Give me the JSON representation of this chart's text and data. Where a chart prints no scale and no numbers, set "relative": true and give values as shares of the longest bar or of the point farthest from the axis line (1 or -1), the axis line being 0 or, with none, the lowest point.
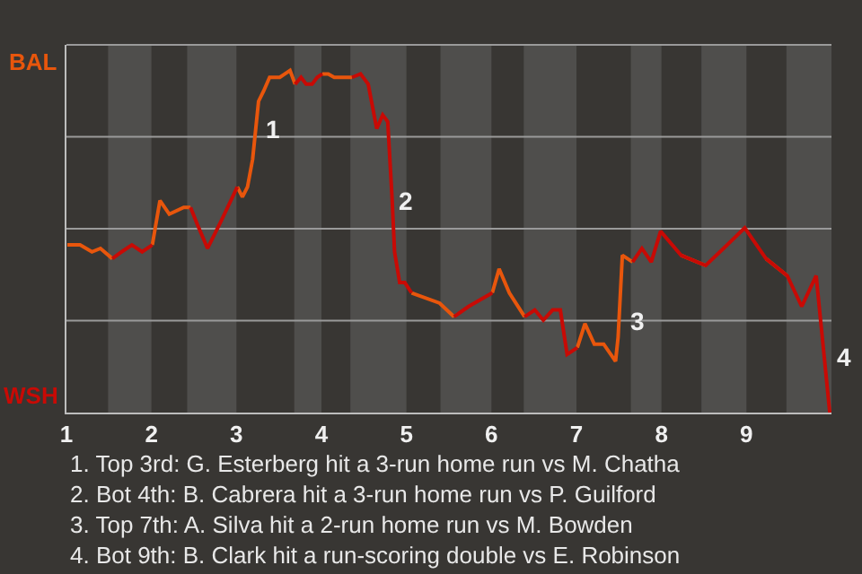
{
  "chart_data": {
    "type": "line",
    "relative": true,
    "x": [
      1.01,
      1.16,
      1.3,
      1.4,
      1.54,
      1.65,
      1.77,
      1.89,
      2.01,
      2.1,
      2.21,
      2.38,
      2.46,
      2.54,
      2.66,
      2.82,
      3.01,
      3.07,
      3.13,
      3.19,
      3.26,
      3.32,
      3.39,
      3.51,
      3.57,
      3.63,
      3.69,
      3.76,
      3.82,
      3.89,
      3.95,
      4.01,
      4.08,
      4.15,
      4.28,
      4.36,
      4.46,
      4.55,
      4.65,
      4.72,
      4.78,
      4.83,
      4.86,
      4.92,
      4.98,
      5.06,
      5.39,
      5.56,
      5.73,
      6.01,
      6.09,
      6.21,
      6.39,
      6.51,
      6.61,
      6.72,
      6.81,
      6.89,
      7.01,
      7.1,
      7.21,
      7.32,
      7.46,
      7.49,
      7.54,
      7.66,
      7.77,
      7.88,
      7.99,
      8.23,
      8.52,
      8.73,
      8.98,
      9.23,
      9.48,
      9.65,
      9.82,
      9.88,
      9.98
    ],
    "series": [
      {
        "color": "#e8560c",
        "values": [
          0.49,
          0.49,
          0.47,
          0.48,
          0.45,
          null,
          null,
          null,
          0.49,
          0.62,
          0.58,
          0.6,
          0.6,
          null,
          null,
          null,
          0.66,
          0.63,
          0.66,
          0.74,
          0.91,
          0.94,
          0.98,
          0.98,
          0.99,
          1,
          0.96,
          null,
          null,
          null,
          null,
          0.99,
          0.99,
          0.98,
          0.98,
          0.98,
          null,
          null,
          null,
          null,
          null,
          null,
          null,
          null,
          null,
          0.35,
          0.32,
          0.28,
          null,
          0.35,
          0.42,
          0.35,
          0.28,
          null,
          null,
          null,
          null,
          null,
          0.19,
          0.26,
          0.2,
          0.2,
          0.15,
          0.22,
          0.46,
          0.44,
          null,
          null,
          null,
          0.46,
          0.43,
          null,
          null,
          0.45,
          0.4,
          null,
          null,
          null,
          null
        ]
      },
      {
        "color": "#c80a05",
        "values": [
          null,
          null,
          null,
          null,
          0.45,
          0.47,
          0.49,
          0.47,
          0.49,
          null,
          null,
          null,
          0.6,
          0.55,
          0.48,
          0.56,
          0.66,
          null,
          null,
          null,
          null,
          null,
          null,
          null,
          null,
          null,
          0.96,
          0.98,
          0.96,
          0.96,
          0.98,
          0.99,
          null,
          null,
          null,
          0.98,
          0.99,
          0.96,
          0.83,
          0.87,
          0.85,
          0.63,
          0.47,
          0.38,
          0.38,
          0.35,
          null,
          0.28,
          0.31,
          0.35,
          null,
          null,
          0.28,
          0.3,
          0.27,
          0.3,
          0.3,
          0.17,
          0.19,
          null,
          null,
          null,
          null,
          null,
          null,
          0.44,
          0.48,
          0.44,
          0.53,
          0.46,
          0.43,
          0.48,
          0.54,
          0.45,
          0.4,
          0.31,
          0.4,
          0.25,
          0
        ]
      }
    ],
    "xlim": [
      1,
      10
    ],
    "xticks": [
      1,
      2,
      3,
      4,
      5,
      6,
      7,
      8,
      9
    ],
    "grid": "y",
    "marker": "none",
    "line_style": "solid",
    "bands": [
      {
        "axis": "x",
        "from": 1.49,
        "to": 2,
        "color": "#4f4e4c"
      },
      {
        "axis": "x",
        "from": 2.42,
        "to": 3,
        "color": "#4f4e4c"
      },
      {
        "axis": "x",
        "from": 3.68,
        "to": 4,
        "color": "#4f4e4c"
      },
      {
        "axis": "x",
        "from": 4.34,
        "to": 5,
        "color": "#4f4e4c"
      },
      {
        "axis": "x",
        "from": 5.4,
        "to": 6,
        "color": "#4f4e4c"
      },
      {
        "axis": "x",
        "from": 6.38,
        "to": 7,
        "color": "#4f4e4c"
      },
      {
        "axis": "x",
        "from": 7.64,
        "to": 8,
        "color": "#4f4e4c"
      },
      {
        "axis": "x",
        "from": 8.47,
        "to": 9,
        "color": "#4f4e4c"
      },
      {
        "axis": "x",
        "from": 9.47,
        "to": 10,
        "color": "#4f4e4c"
      }
    ],
    "annotations": [
      "BAL",
      "WSH",
      {
        "text": "1",
        "x": 3.26,
        "y": 0.83
      },
      {
        "text": "2",
        "x": 4.83,
        "y": 0.62
      },
      {
        "text": "3",
        "x": 7.54,
        "y": 0.27
      },
      {
        "text": "4",
        "x": 9.98,
        "y": 0.16
      },
      "1. Top 3rd: G. Esterberg hit a 3-run home run vs M. Chatha",
      "2. Bot 4th: B. Cabrera hit a 3-run home run vs P. Guilford",
      "3. Top 7th: A. Silva hit a 2-run home run vs M. Bowden",
      "4. Bot 9th: B. Clark hit a run-scoring double vs E. Robinson"
    ]
  }
}
